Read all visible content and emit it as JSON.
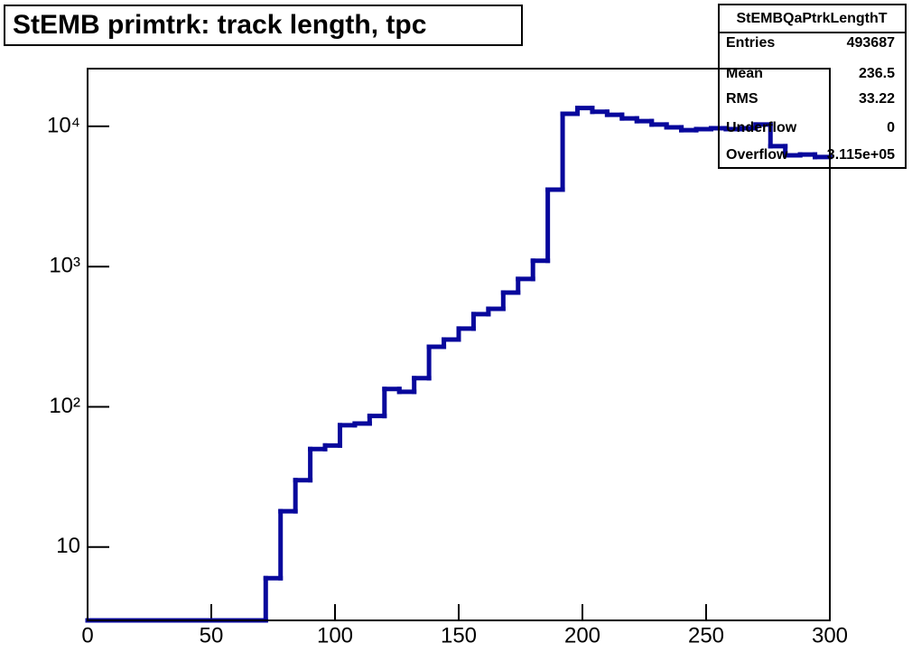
{
  "chart_data": {
    "type": "histogram",
    "title": "StEMB primtrk: track length, tpc",
    "bins": [
      0,
      6,
      12,
      18,
      24,
      30,
      36,
      42,
      48,
      54,
      60,
      66,
      72,
      78,
      84,
      90,
      96,
      102,
      108,
      114,
      120,
      126,
      132,
      138,
      144,
      150,
      156,
      162,
      168,
      174,
      180,
      186,
      192,
      198,
      204,
      210,
      216,
      222,
      228,
      234,
      240,
      246,
      252,
      258,
      264,
      270,
      276,
      282,
      288,
      294,
      300
    ],
    "values": [
      0,
      0,
      0,
      0,
      0,
      0,
      0,
      0,
      0,
      0,
      0,
      0,
      6,
      18,
      30,
      50,
      53,
      74,
      76,
      86,
      134,
      128,
      160,
      268,
      302,
      361,
      458,
      500,
      653,
      816,
      1100,
      3540,
      12300,
      13500,
      12700,
      12100,
      11400,
      10900,
      10300,
      9850,
      9400,
      9560,
      9700,
      9560,
      9700,
      10300,
      7220,
      6220,
      6300,
      6040
    ],
    "color": "#08089c",
    "log_y": true,
    "xlim": [
      0,
      300
    ],
    "xticks": [
      0,
      50,
      100,
      150,
      200,
      250,
      300
    ],
    "ylim": [
      3,
      25800
    ],
    "yticks": [
      10,
      {
        "value": 100,
        "label": "10²"
      },
      {
        "value": 1000,
        "label": "10³"
      },
      {
        "value": 10000,
        "label": "10⁴"
      }
    ],
    "stats": {
      "title": "StEMBQaPtrkLengthT",
      "rows": [
        [
          "Entries",
          "493687"
        ],
        [
          "Mean",
          "236.5"
        ],
        [
          "RMS",
          "33.22"
        ],
        [
          "Underflow",
          "0"
        ],
        [
          "Overflow",
          "3.115e+05"
        ]
      ]
    }
  }
}
